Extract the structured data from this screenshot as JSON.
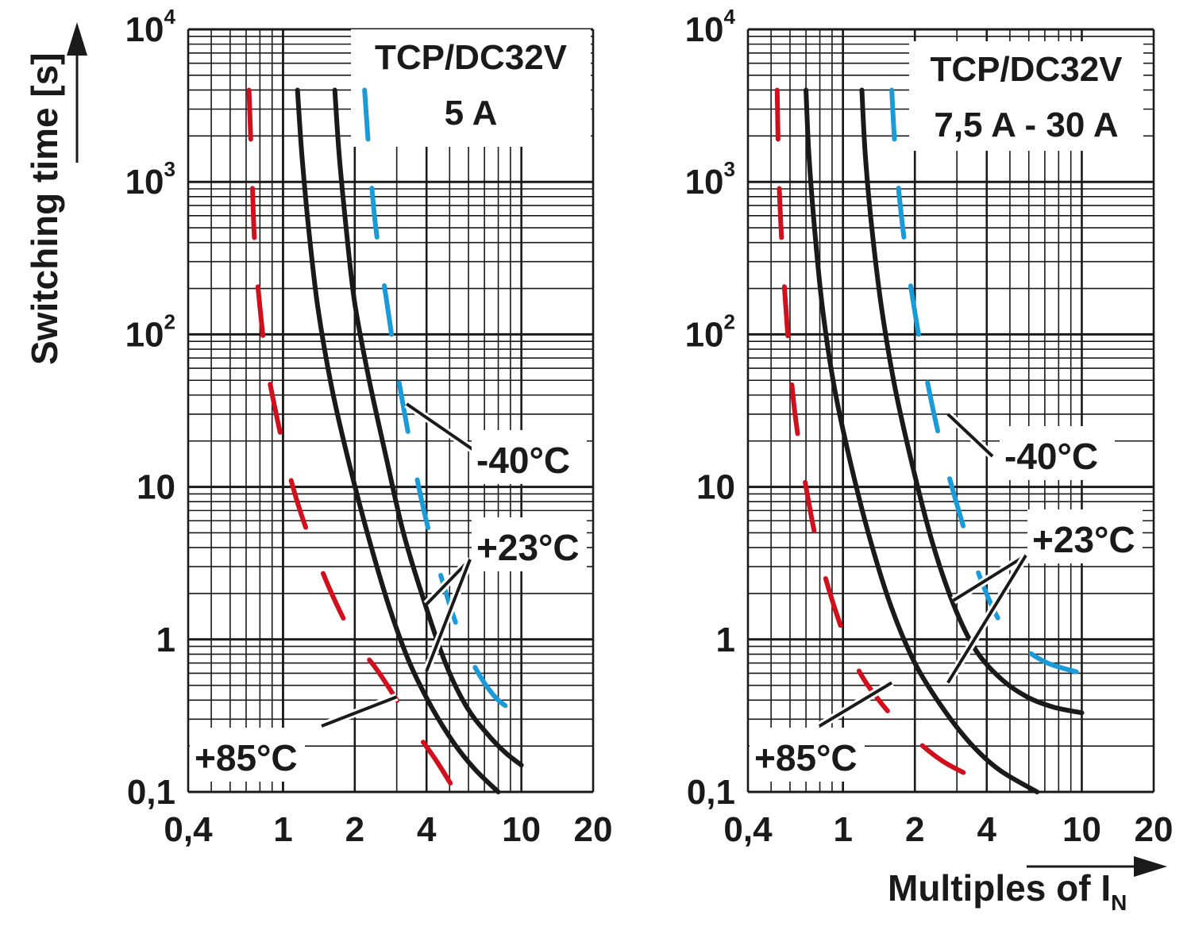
{
  "y_axis_title": "Switching time [s]",
  "x_axis_title_prefix": "Multiples of I",
  "x_axis_title_subscript": "N",
  "colors": {
    "grid": "#1a1a1a",
    "curve_23": "#1a1a1a",
    "curve_85": "#d0101c",
    "curve_m40": "#1a9ad6"
  },
  "temperature_labels": {
    "m40": "-40°C",
    "p23": "+23°C",
    "p85": "+85°C"
  },
  "chart_data": [
    {
      "type": "line",
      "title_line1": "TCP/DC32V",
      "title_line2": "5 A",
      "xscale": "log",
      "yscale": "log",
      "xlim": [
        0.4,
        20
      ],
      "ylim": [
        0.1,
        10000
      ],
      "x_ticks": [
        {
          "v": 0.4,
          "label": "0,4"
        },
        {
          "v": 1,
          "label": "1"
        },
        {
          "v": 2,
          "label": "2"
        },
        {
          "v": 4,
          "label": "4"
        },
        {
          "v": 10,
          "label": "10"
        },
        {
          "v": 20,
          "label": "20"
        }
      ],
      "y_ticks": [
        {
          "v": 0.1,
          "label": "0,1"
        },
        {
          "v": 1,
          "label": "1"
        },
        {
          "v": 10,
          "label": "10"
        },
        {
          "v": 100,
          "label": "10",
          "sup": "2"
        },
        {
          "v": 1000,
          "label": "10",
          "sup": "3"
        },
        {
          "v": 10000,
          "label": "10",
          "sup": "4"
        }
      ],
      "series": [
        {
          "name": "+85°C",
          "style": "dashed",
          "color": "#d0101c",
          "x": [
            0.72,
            0.74,
            0.76,
            0.8,
            0.86,
            0.96,
            1.1,
            1.3,
            1.6,
            2.0,
            2.5,
            3.0,
            3.6,
            4.4,
            5.3
          ],
          "y": [
            4000,
            1200,
            400,
            150,
            60,
            25,
            10,
            4.5,
            2.0,
            1.0,
            0.62,
            0.4,
            0.25,
            0.16,
            0.1
          ]
        },
        {
          "name": "+23°C lower",
          "style": "solid",
          "color": "#1a1a1a",
          "x": [
            1.15,
            1.2,
            1.28,
            1.4,
            1.6,
            1.9,
            2.3,
            2.8,
            3.4,
            4.2,
            5.2,
            6.4,
            8.0
          ],
          "y": [
            4000,
            1500,
            500,
            150,
            45,
            14,
            4.5,
            1.6,
            0.7,
            0.36,
            0.21,
            0.14,
            0.1
          ]
        },
        {
          "name": "+23°C upper",
          "style": "solid",
          "color": "#1a1a1a",
          "x": [
            1.65,
            1.72,
            1.84,
            2.0,
            2.3,
            2.7,
            3.2,
            3.9,
            4.8,
            5.9,
            7.2,
            8.6,
            10.0
          ],
          "y": [
            4000,
            1500,
            500,
            160,
            50,
            16,
            5.0,
            1.8,
            0.7,
            0.36,
            0.24,
            0.18,
            0.15
          ]
        },
        {
          "name": "-40°C",
          "style": "dashed",
          "color": "#1a9ad6",
          "x": [
            2.2,
            2.3,
            2.45,
            2.7,
            3.0,
            3.4,
            3.9,
            4.6,
            5.5,
            6.6,
            8.0,
            10.0
          ],
          "y": [
            4000,
            1500,
            500,
            180,
            60,
            20,
            7.0,
            2.6,
            1.1,
            0.6,
            0.4,
            0.32
          ]
        }
      ],
      "labels": {
        "m40_pos": [
          600,
          580
        ],
        "p23_pos": [
          600,
          690
        ],
        "p85_pos": [
          245,
          955
        ]
      }
    },
    {
      "type": "line",
      "title_line1": "TCP/DC32V",
      "title_line2": "7,5 A - 30 A",
      "xscale": "log",
      "yscale": "log",
      "xlim": [
        0.4,
        20
      ],
      "ylim": [
        0.1,
        10000
      ],
      "x_ticks": [
        {
          "v": 0.4,
          "label": "0,4"
        },
        {
          "v": 1,
          "label": "1"
        },
        {
          "v": 2,
          "label": "2"
        },
        {
          "v": 4,
          "label": "4"
        },
        {
          "v": 10,
          "label": "10"
        },
        {
          "v": 20,
          "label": "20"
        }
      ],
      "y_ticks": [
        {
          "v": 0.1,
          "label": "0,1"
        },
        {
          "v": 1,
          "label": "1"
        },
        {
          "v": 10,
          "label": "10"
        },
        {
          "v": 100,
          "label": "10",
          "sup": "2"
        },
        {
          "v": 1000,
          "label": "10",
          "sup": "3"
        },
        {
          "v": 10000,
          "label": "10",
          "sup": "4"
        }
      ],
      "series": [
        {
          "name": "+85°C",
          "style": "dashed",
          "color": "#d0101c",
          "x": [
            0.53,
            0.54,
            0.56,
            0.59,
            0.63,
            0.7,
            0.8,
            0.95,
            1.15,
            1.45,
            1.9,
            2.6,
            3.7
          ],
          "y": [
            4000,
            1000,
            300,
            90,
            30,
            10,
            3.5,
            1.4,
            0.65,
            0.38,
            0.24,
            0.16,
            0.12
          ]
        },
        {
          "name": "+23°C lower",
          "style": "solid",
          "color": "#1a1a1a",
          "x": [
            0.7,
            0.72,
            0.76,
            0.82,
            0.92,
            1.08,
            1.3,
            1.6,
            2.0,
            2.6,
            3.4,
            4.5,
            6.5
          ],
          "y": [
            4000,
            1500,
            500,
            150,
            45,
            14,
            4.5,
            1.6,
            0.7,
            0.36,
            0.21,
            0.14,
            0.1
          ]
        },
        {
          "name": "+23°C upper",
          "style": "solid",
          "color": "#1a1a1a",
          "x": [
            1.2,
            1.24,
            1.32,
            1.45,
            1.65,
            1.95,
            2.35,
            2.9,
            3.6,
            4.6,
            5.9,
            7.6,
            10.0
          ],
          "y": [
            4000,
            1500,
            500,
            150,
            45,
            14,
            4.5,
            1.7,
            0.85,
            0.55,
            0.42,
            0.36,
            0.33
          ]
        },
        {
          "name": "-40°C",
          "style": "dashed",
          "color": "#1a9ad6",
          "x": [
            1.6,
            1.66,
            1.78,
            1.96,
            2.2,
            2.55,
            3.05,
            3.7,
            4.55,
            5.6,
            7.2,
            10.0
          ],
          "y": [
            4000,
            1500,
            500,
            170,
            60,
            20,
            7.0,
            2.7,
            1.3,
            0.9,
            0.7,
            0.6
          ]
        }
      ],
      "labels": {
        "m40_pos": [
          1265,
          575
        ],
        "p23_pos": [
          1300,
          680
        ],
        "p85_pos": [
          950,
          955
        ]
      }
    }
  ]
}
